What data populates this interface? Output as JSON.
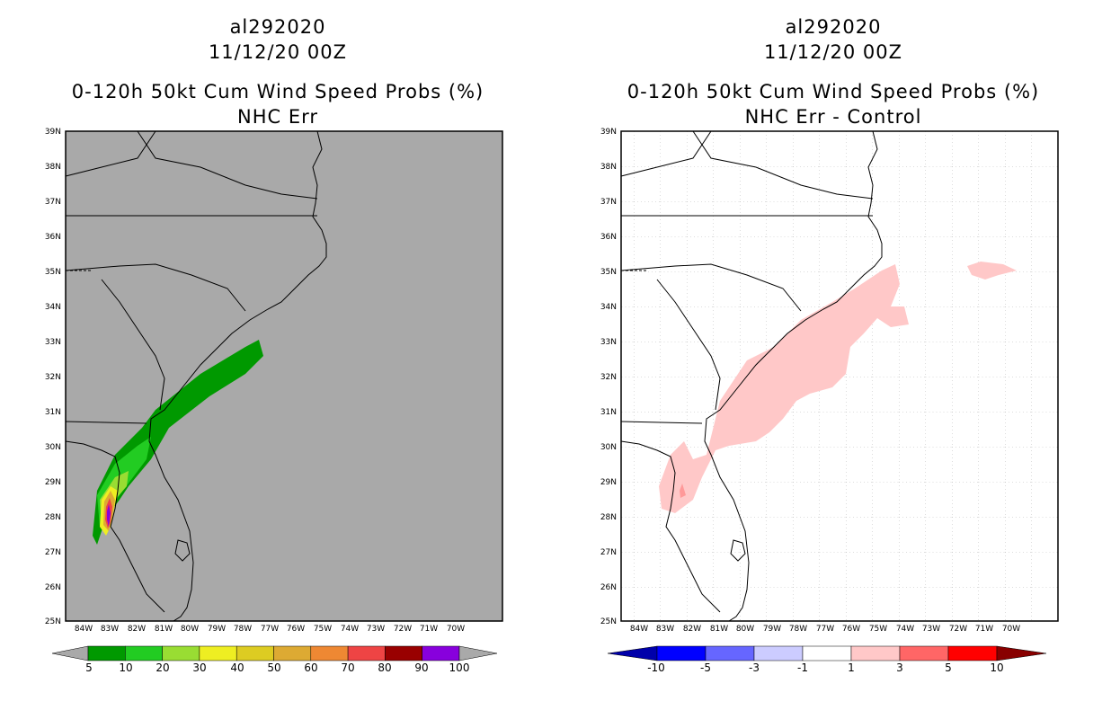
{
  "left": {
    "storm_id": "al292020",
    "datetime": "11/12/20 00Z",
    "product": "0-120h 50kt Cum Wind Speed Probs (%)",
    "subtitle": "NHC Err",
    "background_color": "#a9a9a9",
    "colorbar": {
      "labels": [
        "5",
        "10",
        "20",
        "30",
        "40",
        "50",
        "60",
        "70",
        "80",
        "90",
        "100"
      ],
      "colors": [
        "#009900",
        "#22cc22",
        "#99dd33",
        "#eeee22",
        "#ddcc22",
        "#ddaa33",
        "#ee8833",
        "#ee4444",
        "#990000",
        "#8800dd"
      ]
    }
  },
  "right": {
    "storm_id": "al292020",
    "datetime": "11/12/20 00Z",
    "product": "0-120h 50kt Cum Wind Speed Probs (%)",
    "subtitle": "NHC Err - Control",
    "background_color": "#ffffff",
    "colorbar": {
      "labels": [
        "-10",
        "-5",
        "-3",
        "-1",
        "1",
        "3",
        "5",
        "10"
      ],
      "colors": [
        "#0000aa",
        "#0000ff",
        "#6666ff",
        "#ccccff",
        "#ffffff",
        "#ffc8c8",
        "#ff6666",
        "#ff0000",
        "#880000"
      ]
    }
  },
  "axes": {
    "lat_labels": [
      "39N",
      "38N",
      "37N",
      "36N",
      "35N",
      "34N",
      "33N",
      "32N",
      "31N",
      "30N",
      "29N",
      "28N",
      "27N",
      "26N",
      "25N"
    ],
    "lon_labels_left": [
      "84W",
      "83W",
      "82W",
      "81W",
      "80W",
      "79W",
      "78W",
      "77W",
      "76W",
      "75W",
      "74W",
      "73W",
      "72W",
      "71W",
      "70W"
    ],
    "lon_labels_right": [
      "84W",
      "83W",
      "82W",
      "81W",
      "80W",
      "79W",
      "78W",
      "77W",
      "76W",
      "75W",
      "74W",
      "73W",
      "72W",
      "71W",
      "70W"
    ]
  }
}
